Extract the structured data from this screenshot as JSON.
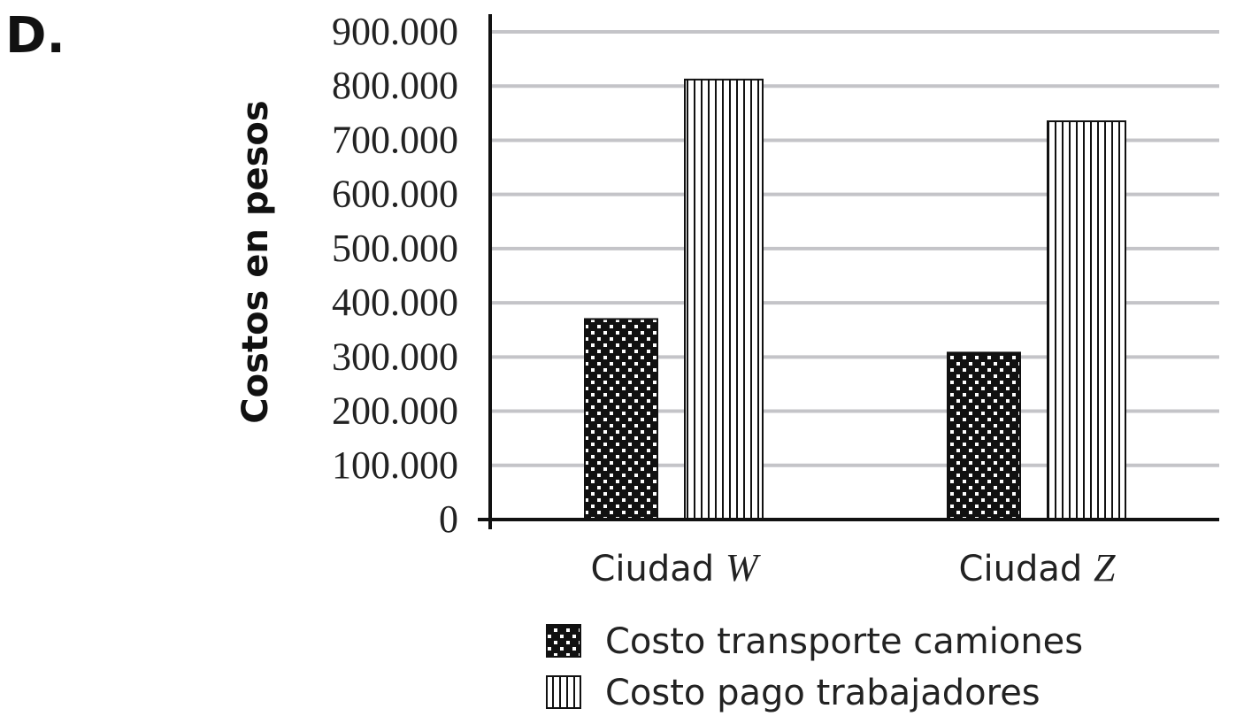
{
  "option_letter": "D.",
  "chart_data": {
    "type": "bar",
    "ylabel": "Costos en pesos",
    "xlabel": "",
    "ylim": [
      0,
      900000
    ],
    "yticks": [
      0,
      100000,
      200000,
      300000,
      400000,
      500000,
      600000,
      700000,
      800000,
      900000
    ],
    "ytick_labels": [
      "0",
      "100.000",
      "200.000",
      "300.000",
      "400.000",
      "500.000",
      "600.000",
      "700.000",
      "800.000",
      "900.000"
    ],
    "grid": true,
    "categories": [
      {
        "prefix": "Ciudad",
        "letter": "W"
      },
      {
        "prefix": "Ciudad",
        "letter": "Z"
      }
    ],
    "series": [
      {
        "name": "Costo transporte camiones",
        "pattern": "dots",
        "values": [
          370000,
          308000
        ]
      },
      {
        "name": "Costo pago trabajadores",
        "pattern": "vertical-stripes",
        "values": [
          812000,
          735000
        ]
      }
    ],
    "legend_placement": "bottom"
  }
}
